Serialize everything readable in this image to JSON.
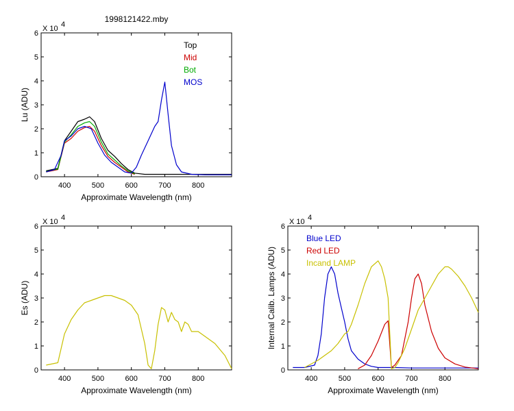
{
  "chart_data": [
    {
      "id": "lu",
      "type": "line",
      "title": "1998121422.mby",
      "ylabel": "Lu (ADU)",
      "xlabel": "Approximate Wavelength (nm)",
      "exponent_label": "X 10",
      "exponent": "4",
      "xlim": [
        330,
        900
      ],
      "ylim": [
        0,
        6
      ],
      "xticks": [
        400,
        500,
        600,
        700,
        800
      ],
      "yticks": [
        0,
        1,
        2,
        3,
        4,
        5,
        6
      ],
      "legend_position": "top-right",
      "series": [
        {
          "name": "Top",
          "color": "#000000",
          "x": [
            345,
            380,
            400,
            420,
            440,
            460,
            475,
            490,
            510,
            530,
            550,
            570,
            590,
            610,
            640,
            680,
            720,
            760,
            800,
            850,
            900
          ],
          "y": [
            0.25,
            0.35,
            1.5,
            1.9,
            2.3,
            2.4,
            2.5,
            2.3,
            1.6,
            1.1,
            0.85,
            0.55,
            0.3,
            0.15,
            0.1,
            0.1,
            0.1,
            0.1,
            0.1,
            0.1,
            0.1
          ]
        },
        {
          "name": "Mid",
          "color": "#cc0000",
          "x": [
            345,
            380,
            400,
            420,
            440,
            460,
            475,
            490,
            510,
            530,
            550,
            570,
            590,
            610
          ],
          "y": [
            0.2,
            0.3,
            1.4,
            1.6,
            1.9,
            2.05,
            2.1,
            1.9,
            1.3,
            0.85,
            0.6,
            0.4,
            0.2,
            0.1
          ]
        },
        {
          "name": "Bot",
          "color": "#00aa00",
          "x": [
            345,
            380,
            400,
            420,
            440,
            460,
            475,
            490,
            510,
            530,
            550,
            570,
            590,
            610
          ],
          "y": [
            0.22,
            0.32,
            1.45,
            1.75,
            2.1,
            2.25,
            2.3,
            2.1,
            1.45,
            0.95,
            0.7,
            0.45,
            0.25,
            0.12
          ]
        },
        {
          "name": "MOS",
          "color": "#0000cc",
          "x": [
            345,
            370,
            390,
            400,
            420,
            440,
            460,
            480,
            500,
            520,
            540,
            560,
            580,
            600,
            615,
            630,
            650,
            670,
            680,
            690,
            700,
            710,
            720,
            735,
            750,
            780,
            820,
            900
          ],
          "y": [
            0.2,
            0.3,
            0.9,
            1.5,
            1.7,
            2.0,
            2.1,
            2.0,
            1.4,
            0.9,
            0.6,
            0.4,
            0.2,
            0.15,
            0.4,
            0.9,
            1.5,
            2.1,
            2.3,
            3.2,
            3.95,
            2.6,
            1.3,
            0.5,
            0.2,
            0.1,
            0.08,
            0.08
          ]
        }
      ]
    },
    {
      "id": "es",
      "type": "line",
      "title": "",
      "ylabel": "Es (ADU)",
      "xlabel": "Approximate Wavelength (nm)",
      "exponent_label": "X 10",
      "exponent": "4",
      "xlim": [
        330,
        900
      ],
      "ylim": [
        0,
        6
      ],
      "xticks": [
        400,
        500,
        600,
        700,
        800
      ],
      "yticks": [
        0,
        1,
        2,
        3,
        4,
        5,
        6
      ],
      "series": [
        {
          "name": "",
          "color": "#c8c000",
          "x": [
            345,
            380,
            400,
            420,
            440,
            460,
            480,
            500,
            520,
            540,
            560,
            580,
            600,
            620,
            640,
            650,
            660,
            670,
            680,
            690,
            700,
            710,
            720,
            730,
            740,
            750,
            760,
            770,
            780,
            800,
            820,
            850,
            880,
            900
          ],
          "y": [
            0.2,
            0.3,
            1.5,
            2.1,
            2.5,
            2.8,
            2.9,
            3.0,
            3.1,
            3.1,
            3.0,
            2.9,
            2.7,
            2.3,
            1.1,
            0.2,
            0.05,
            0.8,
            1.9,
            2.6,
            2.5,
            2.0,
            2.4,
            2.1,
            2.0,
            1.6,
            2.0,
            1.9,
            1.6,
            1.6,
            1.4,
            1.1,
            0.6,
            0.05
          ]
        }
      ]
    },
    {
      "id": "lamps",
      "type": "line",
      "title": "",
      "ylabel": "Internal Calib. Lamps (ADU)",
      "xlabel": "Approximate Wavelength (nm)",
      "exponent_label": "X 10",
      "exponent": "4",
      "xlim": [
        330,
        900
      ],
      "ylim": [
        0,
        6
      ],
      "xticks": [
        400,
        500,
        600,
        700,
        800
      ],
      "yticks": [
        0,
        1,
        2,
        3,
        4,
        5,
        6
      ],
      "legend_position": "top-left",
      "series": [
        {
          "name": "Blue LED",
          "color": "#0000cc",
          "x": [
            345,
            380,
            410,
            420,
            430,
            440,
            450,
            460,
            470,
            480,
            490,
            500,
            510,
            520,
            540,
            560,
            580,
            600,
            650,
            700,
            800,
            900
          ],
          "y": [
            0.1,
            0.1,
            0.2,
            0.6,
            1.5,
            3.0,
            4.0,
            4.3,
            4.0,
            3.2,
            2.6,
            2.0,
            1.3,
            0.8,
            0.45,
            0.25,
            0.15,
            0.1,
            0.1,
            0.08,
            0.08,
            0.08
          ]
        },
        {
          "name": "Red LED",
          "color": "#cc0000",
          "x": [
            540,
            560,
            580,
            600,
            620,
            630,
            640,
            650,
            670,
            690,
            700,
            710,
            720,
            730,
            740,
            760,
            780,
            800,
            830,
            860,
            900
          ],
          "y": [
            0.05,
            0.2,
            0.6,
            1.2,
            1.9,
            2.05,
            0.1,
            0.2,
            0.6,
            2.0,
            3.0,
            3.8,
            4.0,
            3.6,
            2.7,
            1.6,
            0.9,
            0.5,
            0.25,
            0.12,
            0.05
          ]
        },
        {
          "name": "Incand LAMP",
          "color": "#c8c000",
          "x": [
            380,
            420,
            460,
            480,
            500,
            510,
            520,
            540,
            560,
            580,
            600,
            610,
            620,
            630,
            640,
            650,
            660,
            680,
            700,
            720,
            740,
            760,
            780,
            800,
            810,
            820,
            840,
            860,
            880,
            900
          ],
          "y": [
            0.1,
            0.4,
            0.8,
            1.1,
            1.5,
            1.6,
            1.9,
            2.7,
            3.6,
            4.3,
            4.55,
            4.3,
            3.8,
            3.0,
            0.05,
            0.1,
            0.3,
            0.9,
            1.7,
            2.5,
            3.0,
            3.5,
            4.0,
            4.3,
            4.3,
            4.2,
            3.9,
            3.5,
            3.0,
            2.4
          ]
        }
      ]
    }
  ]
}
